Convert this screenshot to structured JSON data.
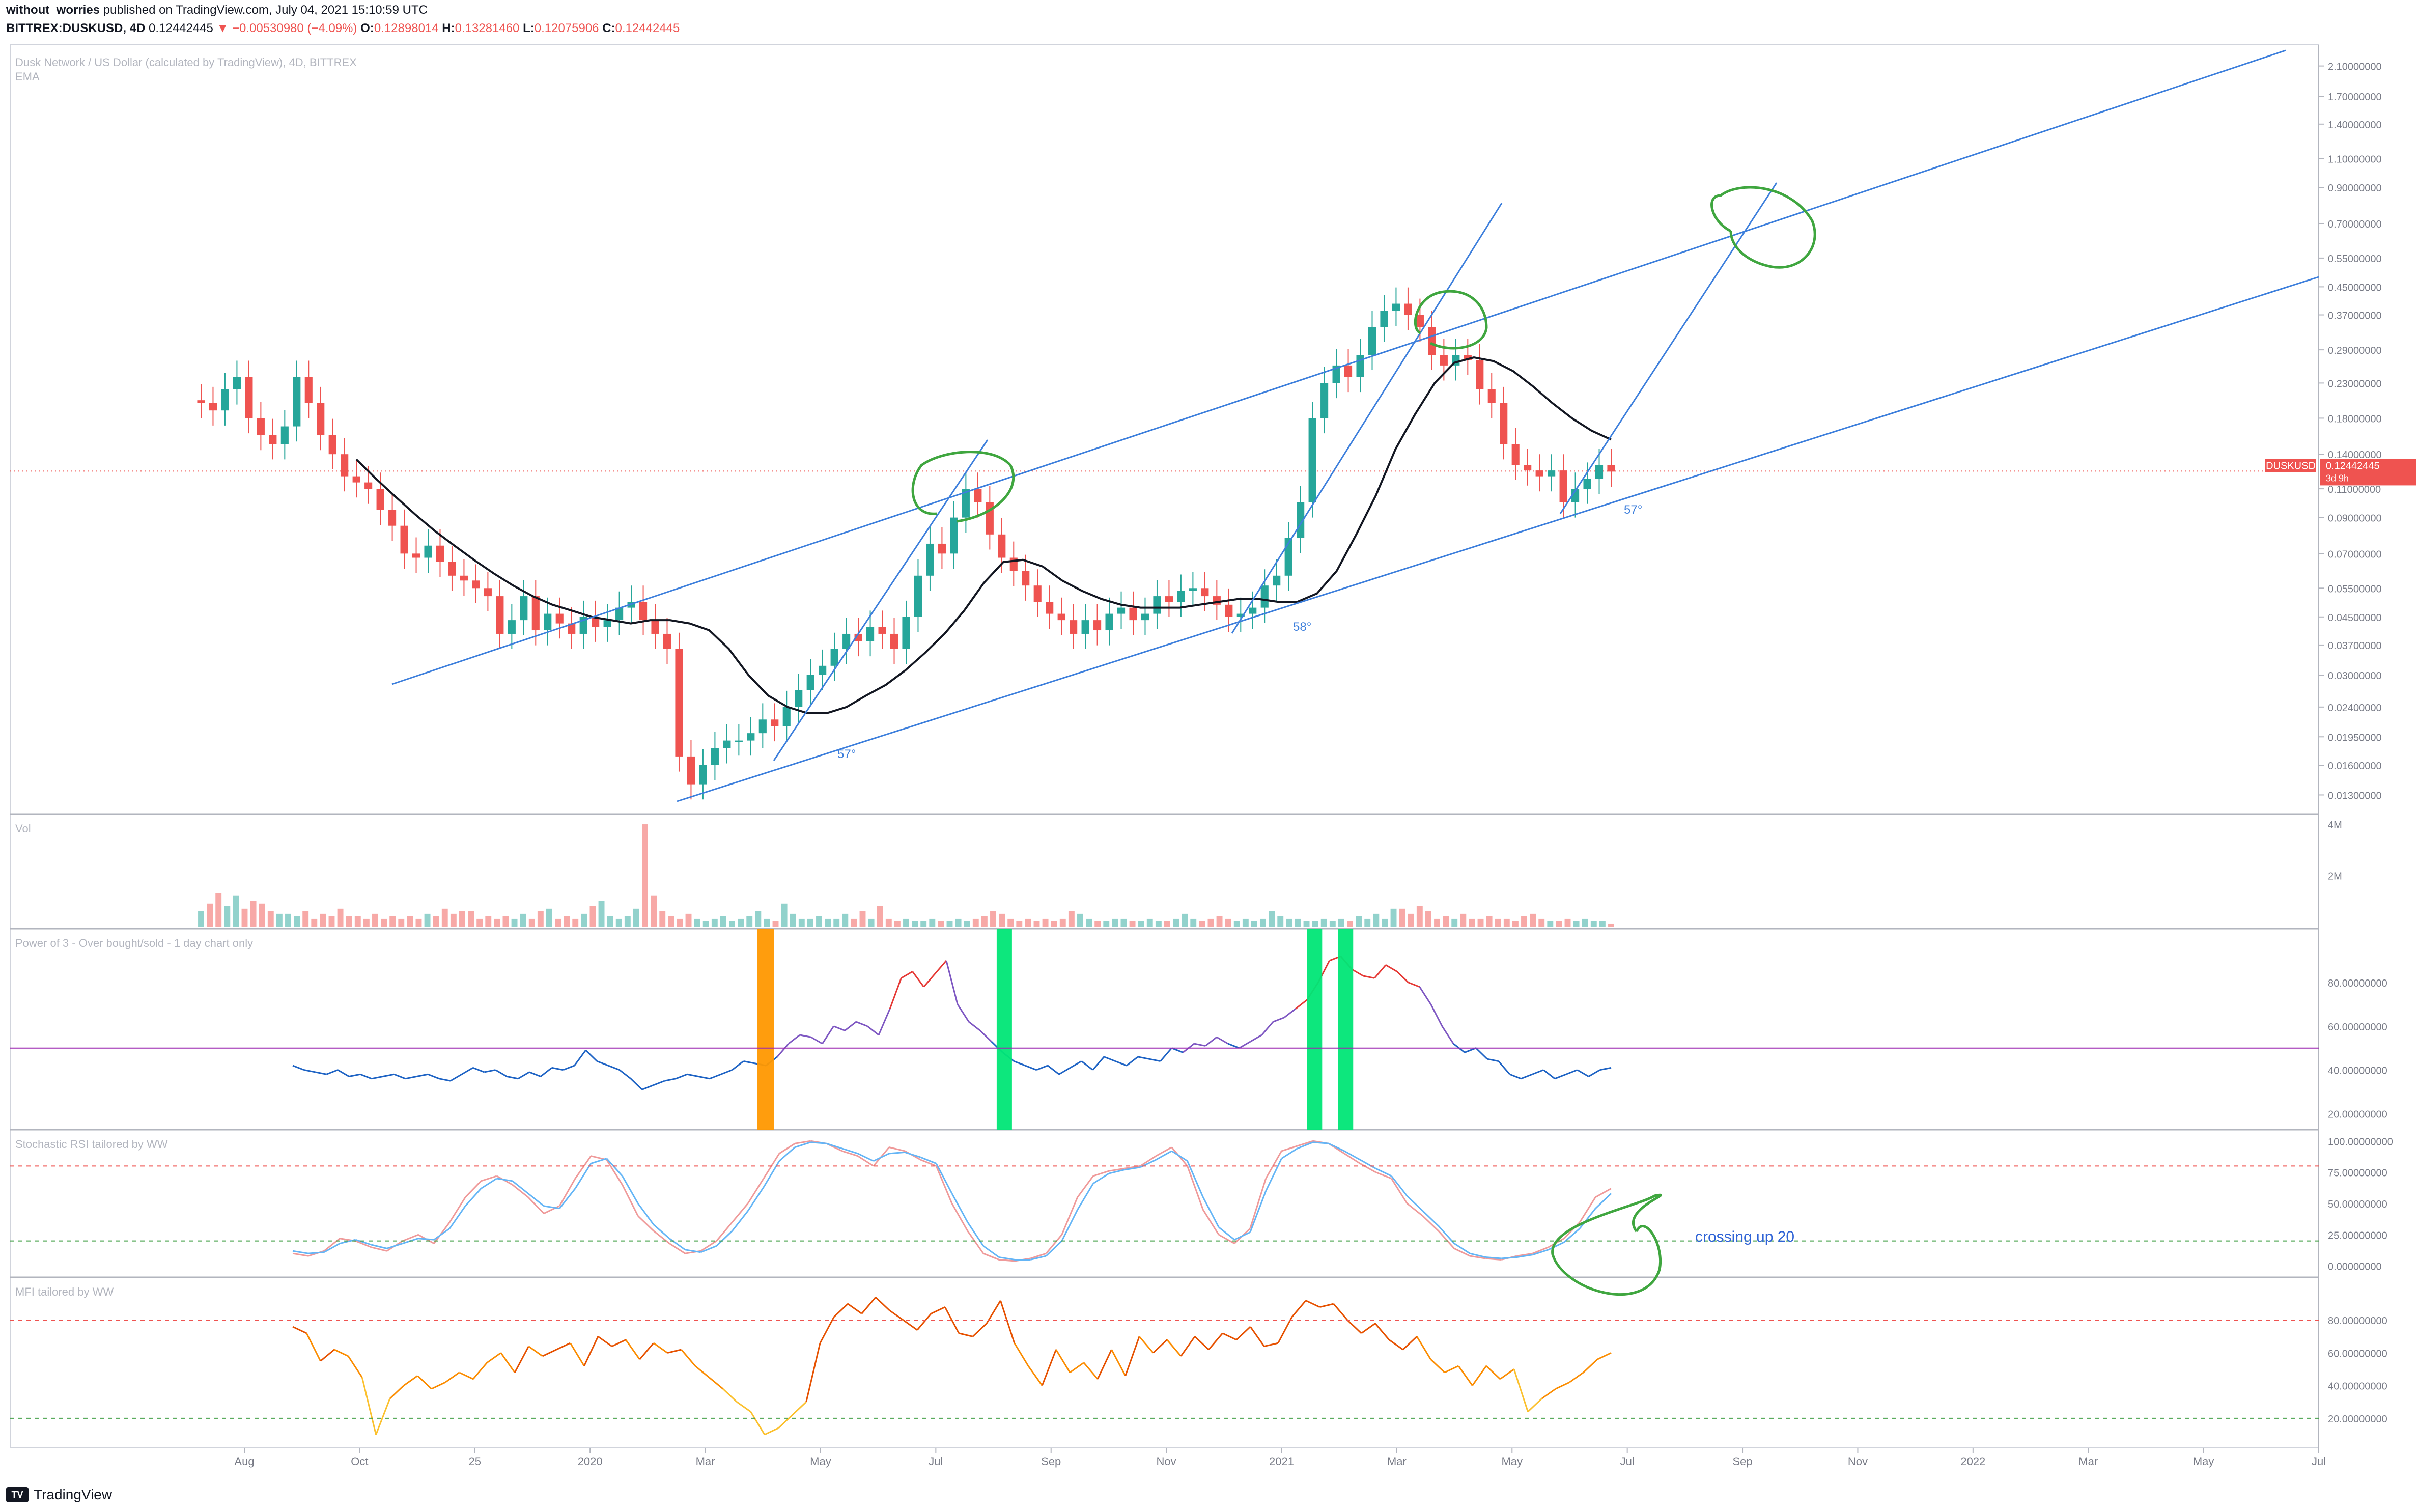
{
  "header": {
    "author": "without_worries",
    "published_text": "published on TradingView.com, July 04, 2021 15:10:59 UTC",
    "symbol": "BITTREX:DUSKUSD, 4D",
    "last": "0.12442445",
    "change_arrow": "▼",
    "change": "−0.00530980 (−4.09%)",
    "o_label": "O:",
    "o": "0.12898014",
    "h_label": "H:",
    "h": "0.13281460",
    "l_label": "L:",
    "l": "0.12075906",
    "c_label": "C:",
    "c": "0.12442445"
  },
  "pane_titles": {
    "main": "Dusk Network / US Dollar (calculated by TradingView), 4D, BITTREX",
    "main_sub": "EMA",
    "vol": "Vol",
    "power": "Power of 3 - Over bought/sold - 1 day chart only",
    "stoch": "Stochastic RSI tailored by WW",
    "mfi": "MFI tailored by WW"
  },
  "price_tag": {
    "symbol": "DUSKUSD",
    "value": "0.12442445",
    "countdown": "3d 9h"
  },
  "annotations": {
    "angle1": "57°",
    "angle2": "58°",
    "angle3": "57°",
    "crossing": "crossing up 20"
  },
  "footer": {
    "brand": "TradingView",
    "logo": "TV"
  },
  "colors": {
    "up": "#26a69a",
    "down": "#ef5350",
    "ema": "#131722",
    "trend": "#3d7fdc",
    "circle": "#3fa63f",
    "orange": "#ff9800",
    "green_bar": "#00e676",
    "mfi": "#f57c00",
    "power_mid": "#9c27b0"
  },
  "chart_data": [
    {
      "type": "candlestick",
      "title": "Dusk Network / US Dollar (calculated by TradingView), 4D, BITTREX",
      "x_tick_labels": [
        "Aug",
        "Oct",
        "25",
        "2020",
        "Mar",
        "May",
        "Jul",
        "Sep",
        "Nov",
        "2021",
        "Mar",
        "May",
        "Jul",
        "Sep",
        "Nov",
        "2022",
        "Mar",
        "May",
        "Jul"
      ],
      "y_tick_labels": [
        "2.10000000",
        "1.70000000",
        "1.40000000",
        "1.10000000",
        "0.90000000",
        "0.70000000",
        "0.55000000",
        "0.45000000",
        "0.37000000",
        "0.29000000",
        "0.23000000",
        "0.18000000",
        "0.14000000",
        "0.11000000",
        "0.09000000",
        "0.07000000",
        "0.05500000",
        "0.04500000",
        "0.03700000",
        "0.03000000",
        "0.02400000",
        "0.01950000",
        "0.01600000",
        "0.01300000"
      ],
      "y_scale": "log",
      "ylim": [
        0.012,
        2.3
      ],
      "close_series": [
        0.2,
        0.19,
        0.22,
        0.24,
        0.18,
        0.16,
        0.15,
        0.17,
        0.24,
        0.2,
        0.16,
        0.14,
        0.12,
        0.115,
        0.11,
        0.095,
        0.085,
        0.07,
        0.068,
        0.074,
        0.066,
        0.06,
        0.058,
        0.055,
        0.052,
        0.04,
        0.044,
        0.052,
        0.041,
        0.046,
        0.043,
        0.04,
        0.045,
        0.042,
        0.044,
        0.048,
        0.05,
        0.044,
        0.04,
        0.036,
        0.017,
        0.014,
        0.016,
        0.018,
        0.019,
        0.019,
        0.02,
        0.022,
        0.021,
        0.024,
        0.027,
        0.03,
        0.032,
        0.036,
        0.04,
        0.038,
        0.042,
        0.04,
        0.036,
        0.045,
        0.06,
        0.075,
        0.07,
        0.09,
        0.11,
        0.1,
        0.08,
        0.068,
        0.062,
        0.056,
        0.05,
        0.046,
        0.044,
        0.04,
        0.044,
        0.041,
        0.046,
        0.048,
        0.044,
        0.046,
        0.052,
        0.05,
        0.054,
        0.055,
        0.052,
        0.049,
        0.045,
        0.046,
        0.048,
        0.056,
        0.06,
        0.078,
        0.1,
        0.18,
        0.23,
        0.26,
        0.24,
        0.28,
        0.34,
        0.38,
        0.4,
        0.37,
        0.34,
        0.28,
        0.26,
        0.28,
        0.27,
        0.22,
        0.2,
        0.15,
        0.13,
        0.125,
        0.12,
        0.125,
        0.1,
        0.11,
        0.118,
        0.13,
        0.124
      ],
      "ema_series": [
        0.135,
        0.118,
        0.104,
        0.092,
        0.082,
        0.074,
        0.067,
        0.061,
        0.056,
        0.052,
        0.049,
        0.047,
        0.045,
        0.044,
        0.043,
        0.044,
        0.044,
        0.043,
        0.041,
        0.036,
        0.03,
        0.026,
        0.024,
        0.023,
        0.023,
        0.024,
        0.026,
        0.028,
        0.031,
        0.035,
        0.04,
        0.047,
        0.057,
        0.066,
        0.067,
        0.064,
        0.058,
        0.054,
        0.051,
        0.049,
        0.048,
        0.048,
        0.048,
        0.049,
        0.05,
        0.051,
        0.051,
        0.05,
        0.05,
        0.053,
        0.062,
        0.08,
        0.105,
        0.145,
        0.185,
        0.23,
        0.265,
        0.275,
        0.268,
        0.25,
        0.225,
        0.2,
        0.18,
        0.165,
        0.155
      ],
      "series": [
        {
          "name": "DUSKUSD",
          "last": 0.12442445
        },
        {
          "name": "EMA"
        }
      ]
    },
    {
      "type": "bar",
      "title": "Vol",
      "y_tick_labels": [
        "4M",
        "2M"
      ],
      "values": [
        0.6,
        0.9,
        1.3,
        0.8,
        1.2,
        0.7,
        1.0,
        0.9,
        0.6,
        0.5,
        0.5,
        0.4,
        0.6,
        0.3,
        0.5,
        0.4,
        0.7,
        0.4,
        0.4,
        0.3,
        0.5,
        0.3,
        0.4,
        0.3,
        0.4,
        0.3,
        0.5,
        0.4,
        0.7,
        0.5,
        0.6,
        0.6,
        0.3,
        0.4,
        0.3,
        0.4,
        0.3,
        0.5,
        0.3,
        0.6,
        0.7,
        0.3,
        0.4,
        0.3,
        0.5,
        0.8,
        1.0,
        0.4,
        0.3,
        0.4,
        0.7,
        4.0,
        1.2,
        0.6,
        0.4,
        0.3,
        0.5,
        0.3,
        0.2,
        0.3,
        0.4,
        0.2,
        0.3,
        0.4,
        0.6,
        0.3,
        0.2,
        0.9,
        0.5,
        0.3,
        0.3,
        0.4,
        0.3,
        0.3,
        0.5,
        0.3,
        0.6,
        0.3,
        0.8,
        0.3,
        0.2,
        0.3,
        0.2,
        0.2,
        0.3,
        0.2,
        0.2,
        0.3,
        0.2,
        0.3,
        0.4,
        0.6,
        0.5,
        0.3,
        0.2,
        0.3,
        0.2,
        0.3,
        0.2,
        0.3,
        0.6,
        0.5,
        0.3,
        0.2,
        0.2,
        0.3,
        0.3,
        0.2,
        0.2,
        0.3,
        0.2,
        0.2,
        0.3,
        0.5,
        0.3,
        0.2,
        0.3,
        0.4,
        0.3,
        0.2,
        0.3,
        0.2,
        0.3,
        0.6,
        0.4,
        0.3,
        0.3,
        0.2,
        0.2,
        0.3,
        0.2,
        0.3,
        0.2,
        0.4,
        0.3,
        0.5,
        0.3,
        0.7,
        0.7,
        0.5,
        0.8,
        0.6,
        0.3,
        0.4,
        0.3,
        0.5,
        0.3,
        0.3,
        0.4,
        0.3,
        0.3,
        0.2,
        0.4,
        0.5,
        0.3,
        0.2,
        0.2,
        0.3,
        0.2,
        0.3,
        0.2,
        0.2,
        0.1
      ]
    },
    {
      "type": "line",
      "title": "Power of 3 - Over bought/sold - 1 day chart only",
      "y_tick_labels": [
        "80.00000000",
        "60.00000000",
        "40.00000000",
        "20.00000000"
      ],
      "ylim": [
        15,
        100
      ],
      "midline": 50,
      "values": [
        42,
        40,
        39,
        38,
        40,
        37,
        38,
        36,
        37,
        38,
        36,
        37,
        38,
        36,
        35,
        38,
        41,
        39,
        40,
        37,
        36,
        39,
        37,
        41,
        40,
        42,
        49,
        44,
        42,
        40,
        36,
        31,
        33,
        35,
        36,
        38,
        37,
        36,
        38,
        40,
        44,
        43,
        42,
        46,
        52,
        56,
        55,
        52,
        60,
        58,
        62,
        60,
        56,
        68,
        82,
        85,
        78,
        84,
        90,
        70,
        62,
        58,
        53,
        48,
        44,
        42,
        40,
        42,
        38,
        41,
        44,
        40,
        46,
        44,
        42,
        46,
        45,
        44,
        50,
        48,
        52,
        51,
        55,
        52,
        50,
        53,
        56,
        62,
        64,
        68,
        72,
        80,
        90,
        92,
        86,
        83,
        82,
        88,
        85,
        80,
        78,
        70,
        60,
        52,
        48,
        50,
        45,
        44,
        38,
        36,
        38,
        40,
        36,
        38,
        40,
        37,
        40,
        41
      ],
      "highlight_bars": [
        {
          "color": "orange",
          "at": 0.4
        },
        {
          "color": "green",
          "at": 0.57
        },
        {
          "color": "green",
          "at": 0.79
        },
        {
          "color": "green",
          "at": 0.812
        }
      ]
    },
    {
      "type": "line",
      "title": "Stochastic RSI tailored by WW",
      "y_tick_labels": [
        "100.00000000",
        "75.00000000",
        "50.00000000",
        "25.00000000",
        "0.00000000"
      ],
      "ylim": [
        -5,
        105
      ],
      "levels": [
        80,
        20
      ],
      "series": [
        {
          "name": "K",
          "values": [
            10,
            8,
            12,
            22,
            20,
            15,
            12,
            20,
            25,
            18,
            35,
            55,
            68,
            72,
            65,
            55,
            42,
            48,
            70,
            88,
            85,
            65,
            40,
            28,
            18,
            10,
            12,
            20,
            35,
            50,
            70,
            90,
            98,
            100,
            98,
            92,
            88,
            80,
            95,
            92,
            85,
            80,
            50,
            28,
            10,
            5,
            4,
            6,
            10,
            25,
            55,
            72,
            76,
            78,
            80,
            88,
            95,
            80,
            45,
            25,
            18,
            30,
            70,
            92,
            96,
            100,
            98,
            90,
            82,
            75,
            70,
            50,
            40,
            28,
            14,
            8,
            6,
            5,
            8,
            10,
            15,
            22,
            35,
            55,
            62
          ]
        },
        {
          "name": "D",
          "values": [
            12,
            10,
            11,
            18,
            21,
            17,
            14,
            18,
            22,
            21,
            30,
            48,
            62,
            70,
            68,
            58,
            48,
            46,
            62,
            82,
            86,
            72,
            50,
            33,
            22,
            13,
            11,
            16,
            28,
            44,
            63,
            84,
            95,
            99,
            98,
            94,
            90,
            84,
            90,
            91,
            87,
            82,
            58,
            35,
            16,
            7,
            5,
            5,
            8,
            20,
            45,
            66,
            74,
            77,
            79,
            85,
            92,
            84,
            55,
            31,
            21,
            27,
            60,
            86,
            94,
            99,
            98,
            92,
            85,
            78,
            72,
            56,
            44,
            32,
            18,
            10,
            7,
            6,
            7,
            9,
            13,
            19,
            30,
            46,
            58
          ]
        }
      ]
    },
    {
      "type": "line",
      "title": "MFI tailored by WW",
      "y_tick_labels": [
        "80.00000000",
        "60.00000000",
        "40.00000000",
        "20.00000000"
      ],
      "ylim": [
        5,
        100
      ],
      "levels": [
        80,
        20
      ],
      "values": [
        76,
        72,
        55,
        62,
        58,
        45,
        10,
        32,
        40,
        46,
        38,
        42,
        48,
        44,
        54,
        60,
        48,
        64,
        58,
        62,
        66,
        52,
        70,
        64,
        68,
        56,
        66,
        60,
        62,
        52,
        45,
        38,
        30,
        24,
        10,
        14,
        22,
        30,
        66,
        82,
        90,
        84,
        94,
        86,
        80,
        74,
        84,
        88,
        72,
        70,
        78,
        92,
        66,
        52,
        40,
        62,
        48,
        54,
        44,
        62,
        46,
        70,
        60,
        68,
        58,
        70,
        62,
        72,
        68,
        76,
        64,
        66,
        82,
        92,
        88,
        90,
        80,
        72,
        78,
        68,
        62,
        70,
        56,
        48,
        52,
        40,
        52,
        44,
        50,
        24,
        32,
        38,
        42,
        48,
        56,
        60
      ]
    }
  ]
}
